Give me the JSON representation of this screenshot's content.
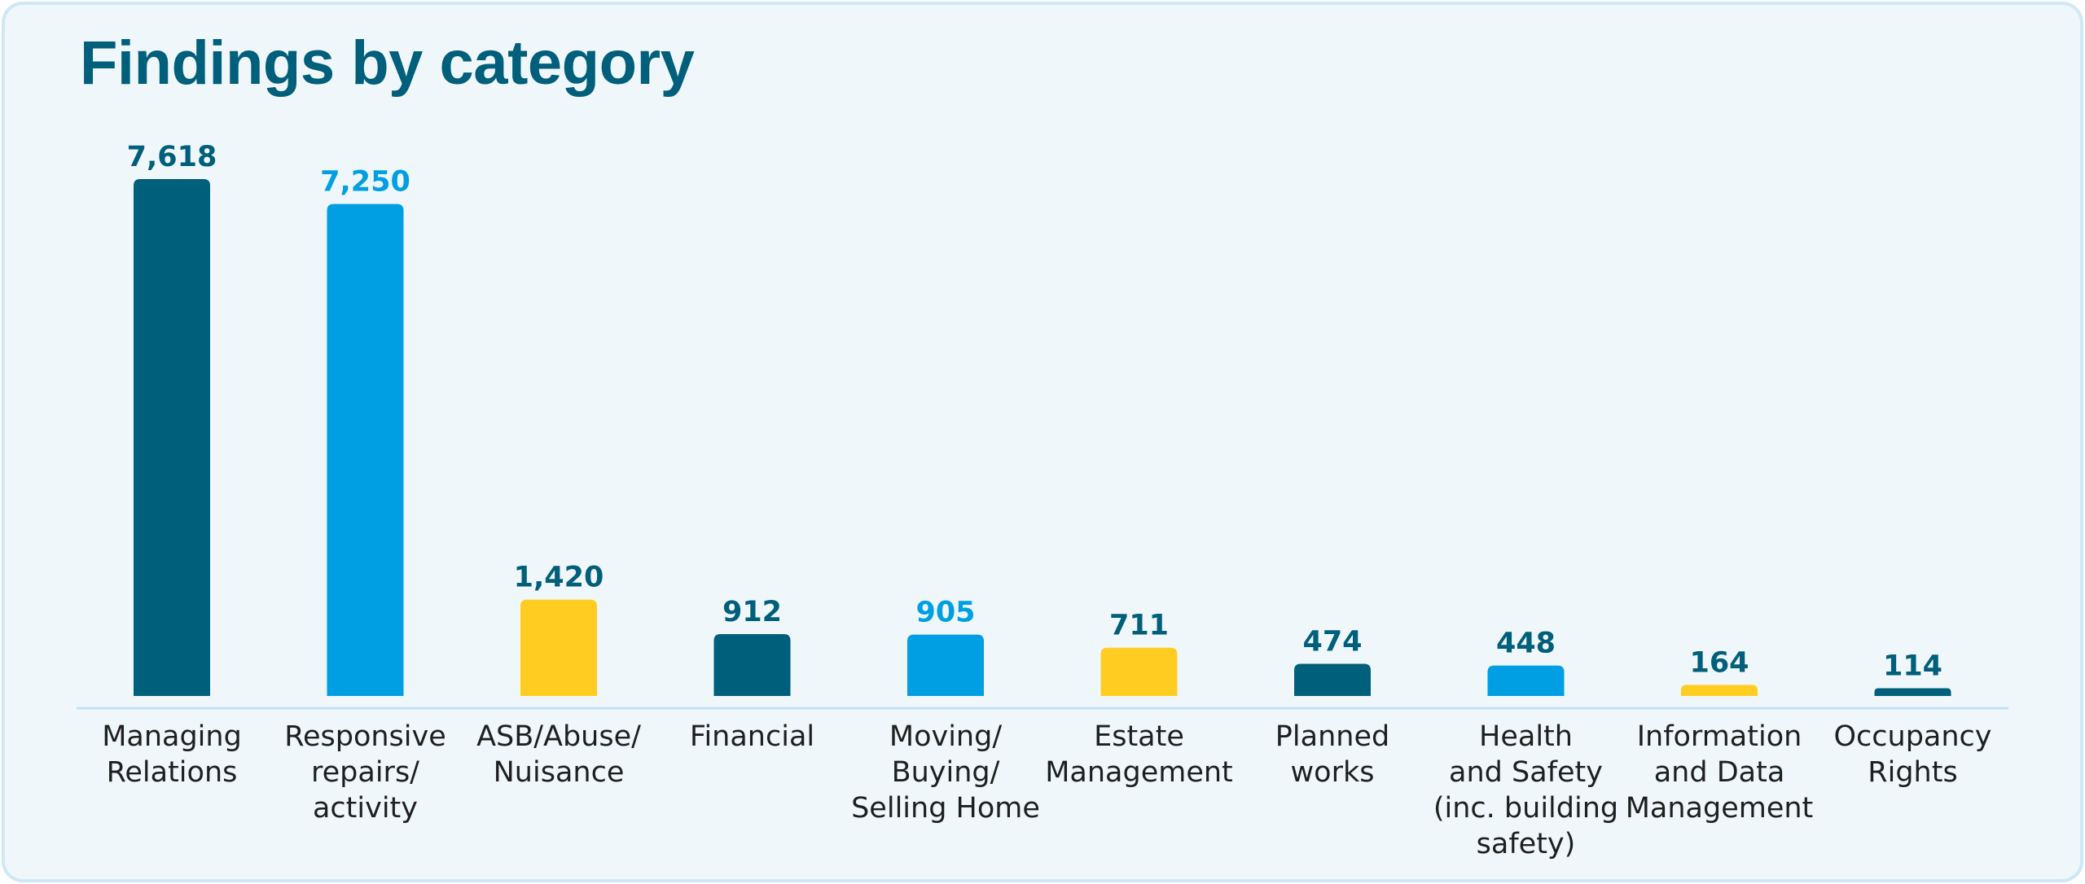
{
  "chart_data": {
    "type": "bar",
    "title": "Findings by category",
    "categories": [
      [
        "Managing",
        "Relations"
      ],
      [
        "Responsive",
        "repairs/",
        "activity"
      ],
      [
        "ASB/Abuse/",
        "Nuisance"
      ],
      [
        "Financial"
      ],
      [
        "Moving/",
        "Buying/",
        "Selling Home"
      ],
      [
        "Estate",
        "Management"
      ],
      [
        "Planned",
        "works"
      ],
      [
        "Health",
        "and Safety",
        "(inc. building",
        "safety)"
      ],
      [
        "Information",
        "and Data",
        "Management"
      ],
      [
        "Occupancy",
        "Rights"
      ]
    ],
    "values": [
      7618,
      7250,
      1420,
      912,
      905,
      711,
      474,
      448,
      164,
      114
    ],
    "value_labels": [
      "7,618",
      "7,250",
      "1,420",
      "912",
      "905",
      "711",
      "474",
      "448",
      "164",
      "114"
    ],
    "bar_colors": [
      "#005f7a",
      "#009fe3",
      "#ffcd22",
      "#005f7a",
      "#009fe3",
      "#ffcd22",
      "#005f7a",
      "#009fe3",
      "#ffcd22",
      "#005f7a"
    ],
    "label_colors": [
      "#005f7a",
      "#009fe3",
      "#005f7a",
      "#005f7a",
      "#009fe3",
      "#005f7a",
      "#005f7a",
      "#005f7a",
      "#005f7a",
      "#005f7a"
    ],
    "ylim": [
      0,
      7618
    ],
    "grid": false,
    "legend": "none"
  }
}
